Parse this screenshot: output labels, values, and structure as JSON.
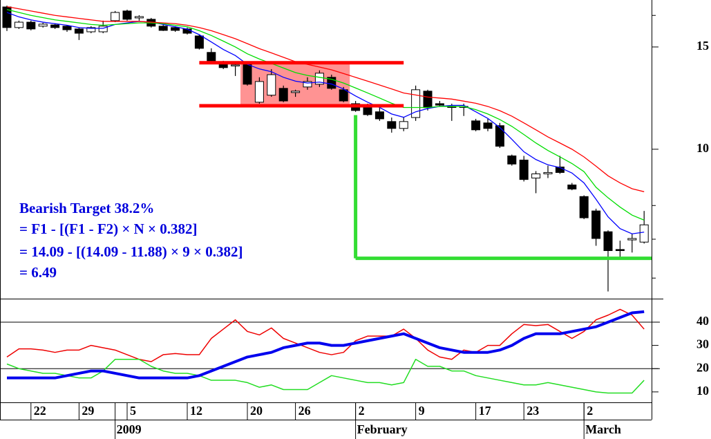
{
  "chart_data": [
    {
      "type": "candlestick",
      "yscale": "log",
      "ylim": [
        5.53,
        18.07
      ],
      "yticks": [
        10,
        15
      ],
      "yminor": [
        6,
        7,
        8,
        17
      ],
      "categories": [
        null,
        null,
        "22",
        null,
        null,
        null,
        "29",
        null,
        null,
        null,
        "5",
        null,
        null,
        null,
        null,
        "12",
        null,
        null,
        null,
        null,
        "20",
        null,
        null,
        null,
        "26",
        null,
        null,
        null,
        null,
        "2",
        null,
        null,
        null,
        null,
        "9",
        null,
        null,
        null,
        null,
        "17",
        null,
        null,
        null,
        "23",
        null,
        null,
        null,
        null,
        "2",
        null,
        null,
        null,
        null,
        null
      ],
      "month_labels": [
        {
          "label": "2009",
          "start": 9
        },
        {
          "label": "February",
          "start": 29
        },
        {
          "label": "March",
          "start": 48
        }
      ],
      "open": [
        17.58,
        16.2,
        16.55,
        16.29,
        16.37,
        16.29,
        16.11,
        15.93,
        15.93,
        16.65,
        17.3,
        16.83,
        16.74,
        16.29,
        16.2,
        16.11,
        15.67,
        14.68,
        14.12,
        13.97,
        14.04,
        12.05,
        12.39,
        12.73,
        12.52,
        12.8,
        12.94,
        13.3,
        12.66,
        11.98,
        11.85,
        11.6,
        11.16,
        10.86,
        11.34,
        12.59,
        11.98,
        11.85,
        11.82,
        11.19,
        11.1,
        10.98,
        9.74,
        9.58,
        8.92,
        9.07,
        9.32,
        8.68,
        8.29,
        7.83,
        7.21,
        6.72,
        6.98,
        6.92
      ],
      "high": [
        17.67,
        16.65,
        16.65,
        16.51,
        16.47,
        16.37,
        16.2,
        16.29,
        16.65,
        17.3,
        17.39,
        17.01,
        16.83,
        16.37,
        16.29,
        16.2,
        15.76,
        14.92,
        14.2,
        14.12,
        14.12,
        13.3,
        13.74,
        12.87,
        12.66,
        13.3,
        13.67,
        13.44,
        12.8,
        12.11,
        11.98,
        11.79,
        11.34,
        11.34,
        12.87,
        12.66,
        12.11,
        11.98,
        11.98,
        11.28,
        11.28,
        11.1,
        9.79,
        9.74,
        9.17,
        9.37,
        9.74,
        8.75,
        8.33,
        7.9,
        7.25,
        6.96,
        7.16,
        7.83
      ],
      "low": [
        15.98,
        16.11,
        16.02,
        16.2,
        16.11,
        15.93,
        15.42,
        15.84,
        15.84,
        16.55,
        16.65,
        16.65,
        16.2,
        15.98,
        15.93,
        15.76,
        14.85,
        14.12,
        13.74,
        13.37,
        12.87,
        11.98,
        12.31,
        12.05,
        12.31,
        12.66,
        12.8,
        12.66,
        12.05,
        11.6,
        11.41,
        11.19,
        10.68,
        10.74,
        11.19,
        11.66,
        11.85,
        11.19,
        11.41,
        10.74,
        10.74,
        10.05,
        9.37,
        8.8,
        8.4,
        8.92,
        9.07,
        8.5,
        7.58,
        6.82,
        5.69,
        6.52,
        6.64,
        6.88
      ],
      "close": [
        16.2,
        16.55,
        16.11,
        16.42,
        16.2,
        16.06,
        15.84,
        16.2,
        16.29,
        17.2,
        16.74,
        16.92,
        16.29,
        16.02,
        16.02,
        15.84,
        14.92,
        14.2,
        13.82,
        13.97,
        12.94,
        13.08,
        13.44,
        12.11,
        12.59,
        13.08,
        13.52,
        12.73,
        12.11,
        11.66,
        11.47,
        11.28,
        10.86,
        11.16,
        12.66,
        11.79,
        11.91,
        11.82,
        11.85,
        10.8,
        10.86,
        10.12,
        9.43,
        8.87,
        9.07,
        9.12,
        9.12,
        8.54,
        7.62,
        7.02,
        6.69,
        6.69,
        7.02,
        7.41
      ],
      "up_color": "#ffffff",
      "down_color": "#000000",
      "series": [
        {
          "color": "#0000ff",
          "values": [
            17.2,
            16.9,
            16.7,
            16.55,
            16.45,
            16.35,
            16.2,
            16.15,
            16.15,
            16.4,
            16.5,
            16.6,
            16.55,
            16.4,
            16.25,
            16.1,
            15.75,
            15.3,
            14.85,
            14.5,
            14.0,
            13.75,
            13.6,
            13.3,
            13.1,
            13.0,
            13.05,
            12.95,
            12.7,
            12.35,
            12.05,
            11.8,
            11.5,
            11.35,
            11.6,
            11.75,
            11.85,
            11.9,
            11.9,
            11.6,
            11.3,
            10.9,
            10.4,
            9.9,
            9.6,
            9.4,
            9.3,
            9.1,
            8.75,
            8.2,
            7.65,
            7.3,
            7.15,
            7.2
          ]
        },
        {
          "color": "#00dd00",
          "values": [
            17.4,
            17.2,
            17.0,
            16.85,
            16.7,
            16.6,
            16.5,
            16.4,
            16.35,
            16.4,
            16.45,
            16.5,
            16.5,
            16.45,
            16.35,
            16.25,
            16.0,
            15.7,
            15.35,
            15.0,
            14.6,
            14.3,
            14.05,
            13.8,
            13.55,
            13.4,
            13.3,
            13.2,
            13.0,
            12.75,
            12.5,
            12.25,
            12.0,
            11.8,
            11.8,
            11.8,
            11.85,
            11.85,
            11.85,
            11.7,
            11.5,
            11.25,
            10.95,
            10.6,
            10.25,
            9.95,
            9.7,
            9.45,
            9.15,
            8.6,
            8.25,
            7.95,
            7.7,
            7.55
          ]
        },
        {
          "color": "#ff0000",
          "values": [
            17.6,
            17.45,
            17.3,
            17.15,
            17.0,
            16.9,
            16.8,
            16.7,
            16.6,
            16.6,
            16.6,
            16.6,
            16.55,
            16.5,
            16.45,
            16.35,
            16.2,
            16.0,
            15.75,
            15.5,
            15.2,
            14.9,
            14.65,
            14.4,
            14.15,
            14.0,
            13.85,
            13.7,
            13.5,
            13.3,
            13.1,
            12.9,
            12.7,
            12.5,
            12.4,
            12.3,
            12.25,
            12.2,
            12.1,
            12.0,
            11.85,
            11.65,
            11.4,
            11.1,
            10.8,
            10.5,
            10.25,
            10.0,
            9.7,
            9.35,
            9.0,
            8.75,
            8.55,
            8.45
          ]
        }
      ],
      "pattern": {
        "top": 14.09,
        "bottom": 11.88,
        "box_start": 20,
        "box_end": 28,
        "line_start": 16,
        "line_end": 33,
        "line_color": "#ff0000",
        "box_color": "#ff8080"
      },
      "target": {
        "value": 6.49,
        "from": 11.45,
        "start": 29,
        "color": "#33dd33"
      },
      "annotation": [
        "Bearish Target 38.2%",
        "= F1 - [(F1 - F2) × N × 0.382]",
        "= 14.09 - [(14.09 - 11.88) × 9 × 0.382]",
        "= 6.49"
      ]
    },
    {
      "type": "line",
      "ylim": [
        5.5,
        50.1
      ],
      "yticks": [
        10,
        20,
        30,
        40
      ],
      "hlines": [
        20,
        40
      ],
      "series": [
        {
          "color": "#ee0000",
          "width": 1.5,
          "values": [
            25,
            28.5,
            28.5,
            28,
            27,
            28,
            28,
            30,
            29,
            28,
            26,
            24,
            23,
            26,
            26.5,
            26,
            26,
            33,
            37,
            41,
            36,
            34.5,
            37.5,
            33,
            31,
            29,
            27,
            26,
            27,
            32,
            34,
            34,
            34,
            37,
            33,
            28,
            25,
            24,
            28,
            27,
            30,
            30,
            35,
            39,
            38.5,
            39,
            36,
            33,
            36,
            41,
            43,
            45.5,
            43,
            37
          ]
        },
        {
          "color": "#22dd22",
          "width": 1.5,
          "values": [
            22,
            20,
            19,
            18,
            18,
            17,
            16,
            16,
            19,
            24,
            24,
            24,
            21,
            19,
            18,
            18,
            17,
            15,
            15,
            15,
            14,
            12,
            13,
            11,
            11,
            11,
            14,
            17,
            16,
            15,
            14,
            14,
            13,
            14,
            24,
            21,
            21,
            19,
            19,
            17,
            16,
            15,
            14,
            13,
            13,
            14,
            13,
            12,
            11,
            10,
            9.5,
            9.5,
            9.5,
            15
          ]
        },
        {
          "color": "#0000ee",
          "width": 4,
          "values": [
            16,
            16,
            16,
            16,
            16,
            17,
            18,
            19,
            19,
            18,
            17,
            16,
            16,
            16,
            16,
            16,
            17,
            19,
            21,
            23,
            25,
            26,
            27,
            29,
            30,
            31,
            31,
            30,
            30,
            31,
            32,
            33,
            34,
            35,
            33,
            31,
            29,
            28,
            27,
            27,
            27,
            28,
            30,
            33,
            35,
            35,
            35,
            36,
            37,
            38,
            40,
            42,
            44,
            44.5
          ]
        }
      ]
    }
  ]
}
